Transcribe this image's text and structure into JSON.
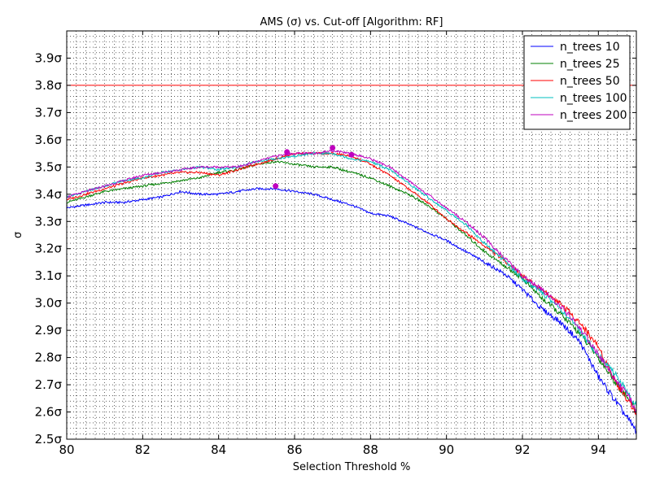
{
  "chart_data": {
    "type": "line",
    "title": "AMS (σ) vs. Cut-off [Algorithm: RF]",
    "xlabel": "Selection Threshold %",
    "ylabel": "σ",
    "xlim": [
      80,
      95
    ],
    "ylim": [
      2.5,
      4.0
    ],
    "grid": true,
    "legend_position": "top-right",
    "x_ticks": [
      80,
      82,
      84,
      86,
      88,
      90,
      92,
      94
    ],
    "x_tick_labels": [
      "80",
      "82",
      "84",
      "86",
      "88",
      "90",
      "92",
      "94"
    ],
    "y_ticks": [
      2.5,
      2.6,
      2.7,
      2.8,
      2.9,
      3.0,
      3.1,
      3.2,
      3.3,
      3.4,
      3.5,
      3.6,
      3.7,
      3.8,
      3.9
    ],
    "y_tick_labels": [
      "2.5σ",
      "2.6σ",
      "2.7σ",
      "2.8σ",
      "2.9σ",
      "3.0σ",
      "3.1σ",
      "3.2σ",
      "3.3σ",
      "3.4σ",
      "3.5σ",
      "3.6σ",
      "3.7σ",
      "3.8σ",
      "3.9σ"
    ],
    "reference_line": {
      "y": 3.8,
      "color": "#ff0000"
    },
    "series": [
      {
        "name": "n_trees 10",
        "color": "#0000ff",
        "x": [
          80,
          80.5,
          81,
          81.5,
          82,
          82.5,
          83,
          83.5,
          84,
          84.5,
          85,
          85.5,
          86,
          86.5,
          87,
          87.5,
          88,
          88.5,
          89,
          89.5,
          90,
          90.5,
          91,
          91.5,
          92,
          92.5,
          93,
          93.5,
          94,
          94.5,
          95
        ],
        "y": [
          3.35,
          3.36,
          3.37,
          3.37,
          3.38,
          3.39,
          3.41,
          3.4,
          3.4,
          3.41,
          3.42,
          3.42,
          3.41,
          3.4,
          3.38,
          3.36,
          3.33,
          3.32,
          3.29,
          3.26,
          3.23,
          3.19,
          3.15,
          3.11,
          3.05,
          2.98,
          2.93,
          2.86,
          2.73,
          2.63,
          2.53
        ],
        "max_marker": {
          "x": 85.5,
          "y": 3.43
        }
      },
      {
        "name": "n_trees 25",
        "color": "#008000",
        "x": [
          80,
          80.5,
          81,
          81.5,
          82,
          82.5,
          83,
          83.5,
          84,
          84.5,
          85,
          85.5,
          86,
          86.5,
          87,
          87.5,
          88,
          88.5,
          89,
          89.5,
          90,
          90.5,
          91,
          91.5,
          92,
          92.5,
          93,
          93.5,
          94,
          94.5,
          95
        ],
        "y": [
          3.37,
          3.39,
          3.41,
          3.42,
          3.43,
          3.44,
          3.45,
          3.46,
          3.48,
          3.49,
          3.51,
          3.52,
          3.51,
          3.5,
          3.5,
          3.48,
          3.46,
          3.43,
          3.4,
          3.36,
          3.31,
          3.25,
          3.19,
          3.14,
          3.09,
          3.02,
          2.96,
          2.89,
          2.8,
          2.7,
          2.61
        ]
      },
      {
        "name": "n_trees 50",
        "color": "#ff0000",
        "x": [
          80,
          80.5,
          81,
          81.5,
          82,
          82.5,
          83,
          83.5,
          84,
          84.5,
          85,
          85.5,
          86,
          86.5,
          87,
          87.5,
          88,
          88.5,
          89,
          89.5,
          90,
          90.5,
          91,
          91.5,
          92,
          92.5,
          93,
          93.5,
          94,
          94.5,
          95
        ],
        "y": [
          3.38,
          3.4,
          3.42,
          3.44,
          3.46,
          3.47,
          3.48,
          3.48,
          3.47,
          3.49,
          3.51,
          3.53,
          3.55,
          3.55,
          3.55,
          3.54,
          3.51,
          3.47,
          3.42,
          3.37,
          3.31,
          3.26,
          3.21,
          3.16,
          3.1,
          3.05,
          3.0,
          2.93,
          2.84,
          2.7,
          2.6
        ]
      },
      {
        "name": "n_trees 100",
        "color": "#00bfbf",
        "x": [
          80,
          80.5,
          81,
          81.5,
          82,
          82.5,
          83,
          83.5,
          84,
          84.5,
          85,
          85.5,
          86,
          86.5,
          87,
          87.5,
          88,
          88.5,
          89,
          89.5,
          90,
          90.5,
          91,
          91.5,
          92,
          92.5,
          93,
          93.5,
          94,
          94.5,
          95
        ],
        "y": [
          3.39,
          3.41,
          3.43,
          3.45,
          3.46,
          3.48,
          3.49,
          3.5,
          3.49,
          3.5,
          3.52,
          3.53,
          3.54,
          3.55,
          3.55,
          3.53,
          3.52,
          3.49,
          3.44,
          3.39,
          3.34,
          3.29,
          3.22,
          3.16,
          3.09,
          3.04,
          2.98,
          2.9,
          2.81,
          2.73,
          2.62
        ]
      },
      {
        "name": "n_trees 200",
        "color": "#bf00bf",
        "x": [
          80,
          80.5,
          81,
          81.5,
          82,
          82.5,
          83,
          83.5,
          84,
          84.5,
          85,
          85.5,
          86,
          86.5,
          87,
          87.5,
          88,
          88.5,
          89,
          89.5,
          90,
          90.5,
          91,
          91.5,
          92,
          92.5,
          93,
          93.5,
          94,
          94.5,
          95
        ],
        "y": [
          3.39,
          3.41,
          3.43,
          3.45,
          3.47,
          3.48,
          3.49,
          3.5,
          3.5,
          3.5,
          3.52,
          3.54,
          3.55,
          3.55,
          3.56,
          3.55,
          3.53,
          3.5,
          3.45,
          3.4,
          3.35,
          3.3,
          3.24,
          3.17,
          3.1,
          3.05,
          2.99,
          2.91,
          2.81,
          2.71,
          2.61
        ],
        "max_marker": {
          "x": 87.0,
          "y": 3.57
        }
      }
    ],
    "extra_markers": [
      {
        "x": 85.8,
        "y": 3.555,
        "color": "#bf00bf"
      },
      {
        "x": 87.5,
        "y": 3.545,
        "color": "#bf00bf"
      }
    ]
  }
}
